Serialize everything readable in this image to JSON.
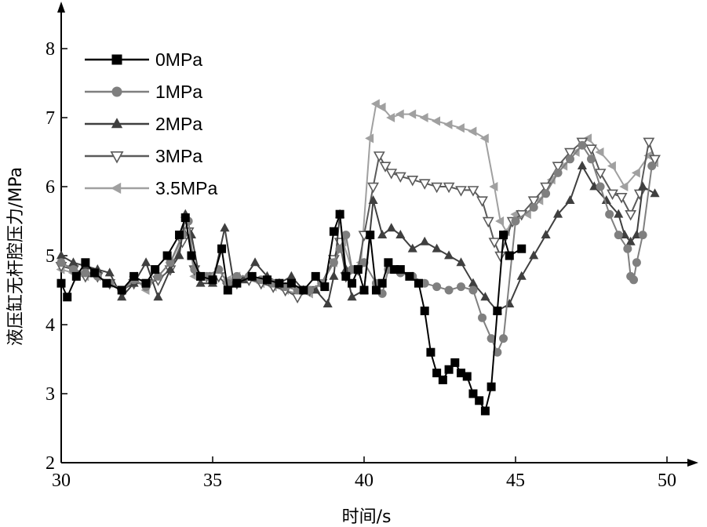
{
  "chart_data": {
    "type": "line",
    "xlabel": "时间/s",
    "ylabel": "液压缸无杆腔压力/MPa",
    "xlim": [
      30,
      50
    ],
    "ylim": [
      2,
      8
    ],
    "xticks": [
      "30",
      "35",
      "40",
      "45",
      "50"
    ],
    "yticks": [
      "2",
      "3",
      "4",
      "5",
      "6",
      "7",
      "8"
    ],
    "legend_position": "top-left",
    "grid": false,
    "series": [
      {
        "name": "0MPa",
        "color": "#000000",
        "marker": "square",
        "x": [
          30.0,
          30.2,
          30.5,
          30.8,
          31.1,
          31.5,
          32.0,
          32.4,
          32.8,
          33.1,
          33.5,
          33.9,
          34.1,
          34.3,
          34.6,
          35.0,
          35.3,
          35.5,
          35.8,
          36.3,
          36.8,
          37.2,
          37.6,
          38.0,
          38.4,
          38.7,
          39.0,
          39.2,
          39.4,
          39.6,
          39.8,
          40.0,
          40.2,
          40.4,
          40.6,
          40.8,
          41.0,
          41.2,
          41.5,
          41.8,
          42.0,
          42.2,
          42.4,
          42.6,
          42.8,
          43.0,
          43.2,
          43.4,
          43.6,
          43.8,
          44.0,
          44.2,
          44.4,
          44.6,
          44.8,
          45.2
        ],
        "y": [
          4.6,
          4.4,
          4.7,
          4.9,
          4.75,
          4.6,
          4.5,
          4.7,
          4.6,
          4.8,
          5.0,
          5.3,
          5.55,
          5.0,
          4.7,
          4.65,
          5.1,
          4.5,
          4.6,
          4.7,
          4.65,
          4.6,
          4.6,
          4.5,
          4.7,
          4.55,
          5.35,
          5.6,
          4.7,
          4.6,
          4.8,
          4.5,
          5.3,
          4.5,
          4.6,
          4.9,
          4.8,
          4.8,
          4.7,
          4.6,
          4.2,
          3.6,
          3.3,
          3.2,
          3.35,
          3.45,
          3.3,
          3.25,
          3.0,
          2.9,
          2.75,
          3.1,
          4.2,
          5.3,
          5.0,
          5.1
        ]
      },
      {
        "name": "1MPa",
        "color": "#7f7f7f",
        "marker": "circle",
        "x": [
          30.0,
          30.4,
          30.8,
          31.2,
          31.6,
          32.0,
          32.4,
          32.8,
          33.2,
          33.6,
          34.0,
          34.2,
          34.4,
          34.8,
          35.2,
          35.5,
          35.8,
          36.2,
          36.6,
          37.0,
          37.4,
          37.8,
          38.2,
          38.6,
          39.0,
          39.2,
          39.4,
          39.6,
          40.0,
          40.4,
          40.6,
          40.8,
          41.2,
          41.6,
          42.0,
          42.4,
          42.8,
          43.2,
          43.6,
          43.9,
          44.2,
          44.4,
          44.6,
          45.0,
          45.6,
          46.0,
          46.4,
          46.8,
          47.2,
          47.5,
          47.8,
          48.1,
          48.4,
          48.7,
          48.8,
          48.9,
          49.0,
          49.2,
          49.5
        ],
        "y": [
          4.9,
          4.8,
          4.75,
          4.7,
          4.6,
          4.5,
          4.65,
          4.55,
          4.7,
          4.9,
          5.3,
          5.5,
          4.8,
          4.7,
          4.8,
          4.6,
          4.7,
          4.7,
          4.65,
          4.6,
          4.55,
          4.5,
          4.5,
          4.6,
          4.9,
          5.1,
          5.3,
          4.8,
          4.9,
          4.6,
          4.45,
          4.8,
          4.75,
          4.7,
          4.6,
          4.55,
          4.5,
          4.55,
          4.5,
          4.1,
          3.8,
          3.6,
          3.8,
          5.5,
          5.7,
          5.9,
          6.2,
          6.4,
          6.6,
          6.4,
          6.0,
          5.6,
          5.3,
          5.1,
          4.7,
          4.65,
          4.9,
          5.3,
          6.3
        ]
      },
      {
        "name": "2MPa",
        "color": "#3f3f3f",
        "marker": "triangle-up",
        "x": [
          30.0,
          30.4,
          30.8,
          31.2,
          31.6,
          32.0,
          32.4,
          32.8,
          33.2,
          33.6,
          33.9,
          34.1,
          34.3,
          34.6,
          35.0,
          35.4,
          35.7,
          36.0,
          36.4,
          36.8,
          37.2,
          37.6,
          38.0,
          38.4,
          38.8,
          39.0,
          39.2,
          39.4,
          39.6,
          40.0,
          40.3,
          40.6,
          40.9,
          41.2,
          41.6,
          42.0,
          42.4,
          42.8,
          43.2,
          43.6,
          44.0,
          44.4,
          44.8,
          45.2,
          45.6,
          46.0,
          46.4,
          46.8,
          47.2,
          47.6,
          48.0,
          48.4,
          48.6,
          48.8,
          49.0,
          49.2,
          49.6
        ],
        "y": [
          5.0,
          4.9,
          4.85,
          4.8,
          4.75,
          4.4,
          4.6,
          4.9,
          4.4,
          4.8,
          5.0,
          5.6,
          5.3,
          4.6,
          4.6,
          5.4,
          4.6,
          4.65,
          4.9,
          4.7,
          4.6,
          4.7,
          4.5,
          4.5,
          4.3,
          4.7,
          5.6,
          4.8,
          4.4,
          4.5,
          5.8,
          5.3,
          5.4,
          5.3,
          5.1,
          5.2,
          5.1,
          5.0,
          4.9,
          4.6,
          4.4,
          4.2,
          4.3,
          4.7,
          5.0,
          5.3,
          5.6,
          5.8,
          6.3,
          6.0,
          5.8,
          5.6,
          5.3,
          5.2,
          5.3,
          6.0,
          5.9
        ]
      },
      {
        "name": "3MPa",
        "color": "#5a5a5a",
        "marker": "triangle-down-open",
        "x": [
          30.0,
          30.4,
          30.8,
          31.2,
          31.6,
          32.0,
          32.4,
          32.8,
          33.2,
          33.6,
          34.0,
          34.2,
          34.4,
          34.8,
          35.2,
          35.5,
          35.8,
          36.2,
          36.6,
          37.0,
          37.4,
          37.8,
          38.2,
          38.6,
          39.0,
          39.2,
          39.4,
          39.8,
          40.0,
          40.3,
          40.5,
          40.7,
          40.9,
          41.2,
          41.6,
          42.0,
          42.4,
          42.8,
          43.2,
          43.6,
          43.9,
          44.1,
          44.3,
          44.5,
          44.9,
          45.2,
          45.6,
          46.0,
          46.4,
          46.8,
          47.2,
          47.5,
          47.8,
          48.2,
          48.5,
          48.8,
          49.1,
          49.4,
          49.6
        ],
        "y": [
          4.85,
          4.8,
          4.7,
          4.7,
          4.6,
          4.5,
          4.6,
          4.6,
          4.65,
          4.8,
          5.2,
          5.35,
          4.8,
          4.7,
          4.7,
          4.55,
          4.6,
          4.65,
          4.6,
          4.55,
          4.5,
          4.4,
          4.5,
          4.6,
          4.95,
          5.2,
          4.7,
          4.8,
          5.3,
          6.0,
          6.45,
          6.3,
          6.2,
          6.15,
          6.1,
          6.05,
          6.0,
          6.0,
          5.95,
          5.95,
          5.8,
          5.5,
          5.2,
          5.0,
          5.5,
          5.6,
          5.8,
          6.0,
          6.3,
          6.5,
          6.65,
          6.55,
          6.2,
          5.9,
          5.85,
          5.6,
          5.9,
          6.65,
          6.4
        ]
      },
      {
        "name": "3.5MPa",
        "color": "#a0a0a0",
        "marker": "triangle-left",
        "x": [
          30.0,
          30.4,
          30.8,
          31.2,
          31.6,
          32.0,
          32.4,
          32.8,
          33.2,
          33.6,
          34.0,
          34.2,
          34.4,
          34.8,
          35.2,
          35.5,
          35.8,
          36.2,
          36.6,
          37.0,
          37.4,
          37.8,
          38.2,
          38.6,
          39.0,
          39.3,
          39.6,
          39.9,
          40.2,
          40.4,
          40.6,
          40.9,
          41.2,
          41.6,
          42.0,
          42.4,
          42.8,
          43.2,
          43.6,
          44.0,
          44.3,
          44.5,
          44.7,
          45.0,
          45.4,
          45.8,
          46.2,
          46.6,
          47.0,
          47.4,
          47.8,
          48.2,
          48.6,
          49.0,
          49.4,
          49.6
        ],
        "y": [
          4.8,
          4.75,
          4.7,
          4.7,
          4.6,
          4.5,
          4.7,
          4.5,
          4.7,
          4.9,
          5.25,
          5.3,
          4.7,
          4.7,
          4.75,
          4.65,
          4.7,
          4.7,
          4.6,
          4.55,
          4.5,
          4.45,
          4.45,
          4.6,
          4.9,
          5.2,
          4.8,
          4.9,
          6.7,
          7.2,
          7.15,
          7.0,
          7.05,
          7.05,
          7.0,
          6.95,
          6.9,
          6.85,
          6.8,
          6.7,
          6.0,
          5.5,
          5.35,
          5.6,
          5.6,
          5.8,
          6.1,
          6.3,
          6.5,
          6.7,
          6.5,
          6.3,
          6.0,
          6.2,
          6.45,
          6.35
        ]
      }
    ]
  }
}
